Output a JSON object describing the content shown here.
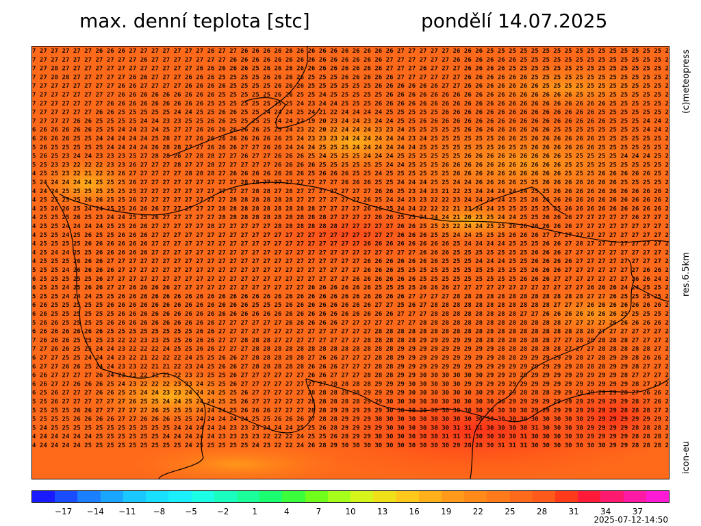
{
  "header": {
    "title": "max. denní teplota [stc]",
    "date": "pondělí 14.07.2025"
  },
  "side_labels": {
    "copyright": "(c)meteopress",
    "resolution": "res.6.5km",
    "model": "icon-eu"
  },
  "timestamp": "2025-07-12-14:50",
  "colorbar": {
    "ticks": [
      "−17",
      "−14",
      "−11",
      "−8",
      "−5",
      "−2",
      "1",
      "4",
      "7",
      "10",
      "13",
      "16",
      "19",
      "22",
      "25",
      "28",
      "31",
      "34",
      "37"
    ],
    "tick_values": [
      -17,
      -14,
      -11,
      -8,
      -5,
      -2,
      1,
      4,
      7,
      10,
      13,
      16,
      19,
      22,
      25,
      28,
      31,
      34,
      37
    ],
    "range": [
      -20,
      40
    ],
    "colors": [
      "#1a1aff",
      "#1a4cff",
      "#1a80ff",
      "#1aa6ff",
      "#1ac8ff",
      "#1ae0ff",
      "#1af0ff",
      "#1affe6",
      "#1affc0",
      "#1aff9a",
      "#1aff70",
      "#3aff3a",
      "#70ff1a",
      "#a6ff1a",
      "#d6f51a",
      "#f0e01a",
      "#ffc81a",
      "#ffb01a",
      "#ff9a1a",
      "#ff8a1a",
      "#ff7a1a",
      "#ff6a1a",
      "#ff5a1a",
      "#ff3a1a",
      "#ff1a3a",
      "#ff1a70",
      "#ff1aa6",
      "#ff1ad6"
    ]
  },
  "map": {
    "grid_text_rows": [
      "7 27 27 27 27 27 26 26 26 27 27 27 27 27 27 27 26 27 27 26 26 26 26 26 26 26 26 26 26 26 26 26 26 27 27 27 27 27 26 26 26 25 25 25 25 25 25 25 25 25 25 25 25 25 25 25 25 2",
      "7 27 27 27 27 27 27 27 27 27 26 27 27 27 27 27 27 27 26 26 26 26 26 26 26 26 26 26 26 26 26 26 27 27 27 27 27 27 26 26 26 26 26 26 25 25 25 25 25 25 25 25 25 25 25 25 25 2",
      "7 27 28 27 27 27 27 27 27 27 27 27 27 27 27 26 26 26 26 26 25 26 26 26 26 26 26 26 26 26 26 26 27 27 27 26 27 27 27 26 26 26 26 25 25 25 25 25 25 25 25 25 25 25 25 25 25 2",
      "7 27 28 28 27 27 27 27 27 26 26 27 27 27 26 26 26 25 25 25 25 26 26 26 26 25 25 25 26 26 26 26 26 27 27 27 27 27 27 26 26 26 26 26 26 25 25 25 25 25 25 25 25 25 25 25 25 2",
      "7 27 27 27 27 27 27 27 26 26 27 27 27 27 26 26 26 26 25 25 25 25 26 26 26 25 25 25 25 25 25 26 26 26 26 26 26 27 27 26 26 26 26 26 26 26 25 25 25 25 25 25 25 25 25 25 25 2",
      "7 27 27 27 27 27 27 27 26 26 26 26 26 26 26 26 26 25 25 25 25 25 26 26 25 25 24 25 25 25 25 25 26 26 26 26 26 26 26 26 26 26 26 26 26 26 26 26 26 25 25 25 25 25 25 25 25 2",
      "7 27 27 27 27 27 27 26 26 26 26 26 26 26 26 26 25 25 25 25 25 25 25 25 24 23 24 24 25 25 25 26 26 26 26 26 26 26 26 26 26 26 26 26 26 26 26 26 26 26 26 26 25 25 25 25 25 2",
      "7 27 27 27 27 27 26 26 25 25 25 25 25 24 24 25 25 26 26 25 25 24 24 24 25 24 21 22 24 24 24 24 25 25 25 25 25 26 26 26 26 26 26 26 26 26 26 26 26 26 26 25 25 25 25 25 25 2",
      "7 27 27 27 26 26 25 25 25 25 24 24 23 23 25 25 26 26 25 25 25 25 24 24 22 19 20 23 24 24 23 24 24 25 25 26 26 26 26 26 26 26 26 26 26 26 26 26 26 26 26 26 25 25 25 24 24 2",
      "6 26 26 26 26 26 25 25 24 24 23 24 25 27 27 26 26 26 26 26 26 25 25 24 23 22 20 22 24 24 24 23 23 24 25 25 25 25 25 26 26 26 26 26 26 26 26 25 25 25 25 25 25 25 25 24 24 2",
      "6 26 26 26 25 25 24 24 24 24 24 25 28 27 27 26 26 26 26 26 26 26 26 25 24 23 23 23 24 24 24 24 24 24 23 24 25 25 25 25 25 25 26 26 25 26 26 26 26 26 26 25 25 25 25 25 25 2",
      "5 26 25 25 25 25 25 24 24 24 24 26 28 28 27 27 26 26 26 27 27 26 26 24 24 24 25 25 25 24 24 24 24 24 24 25 25 25 25 25 25 25 26 25 25 26 26 26 26 26 26 25 25 25 25 25 25 2",
      "5 26 25 23 24 24 23 23 23 25 27 28 28 26 27 28 28 27 27 26 27 27 26 26 26 25 24 25 25 25 24 24 24 25 25 25 25 25 25 26 26 26 26 26 26 26 26 26 25 25 25 25 25 24 24 24 25 2",
      "5 25 23 23 22 22 22 23 23 26 27 27 27 28 27 27 28 27 27 27 27 27 26 26 26 26 25 25 25 25 25 25 24 24 25 25 25 26 26 26 26 26 26 26 26 26 26 26 25 25 25 25 25 25 25 25 25 2",
      "4 25 25 23 22 21 22 23 26 27 27 27 27 27 28 28 28 27 26 26 26 26 26 26 26 25 26 26 26 25 25 24 25 25 25 25 25 25 26 26 26 26 26 26 26 26 26 26 25 25 25 26 26 26 26 26 25 2",
      "5 24 24 24 24 24 25 25 25 26 27 27 27 27 27 27 27 27 27 28 28 27 27 27 27 27 27 27 26 26 26 25 25 24 24 24 25 25 24 24 26 26 26 26 25 25 26 26 26 26 26 26 26 25 25 25 25 2",
      "4 24 24 25 25 25 25 25 25 25 27 27 27 27 27 27 27 27 27 27 28 28 27 28 27 27 27 27 27 27 27 26 26 25 23 24 23 21 22 23 24 24 24 24 24 25 25 26 26 26 26 26 26 26 26 26 26 2",
      "4 25 25 25 25 26 26 25 25 26 27 27 27 27 27 27 27 27 28 28 28 28 28 28 27 27 27 27 27 27 26 25 24 24 23 23 22 22 23 24 24 23 24 25 25 26 26 26 26 26 26 26 26 26 26 26 26 2",
      "4 25 26 26 25 24 24 25 25 26 26 26 27 27 27 27 27 28 28 28 28 28 28 28 28 28 27 27 27 27 26 26 25 24 24 22 22 22 21 23 24 24 25 25 25 25 25 25 26 26 26 26 26 26 26 26 26 2",
      "4 25 25 25 26 25 23 24 24 25 25 26 27 27 27 27 27 28 28 28 28 28 28 28 28 28 28 27 27 27 27 26 26 25 25 24 24 24 21 20 23 25 24 24 25 25 26 26 26 27 27 27 27 27 26 27 27 2",
      "4 25 25 24 24 24 24 25 25 26 26 27 27 27 27 27 28 27 27 27 27 27 28 28 28 28 28 28 27 27 27 27 27 26 26 25 25 23 22 24 24 25 25 26 26 26 26 26 26 27 27 27 27 27 27 27 27 2",
      "4 25 25 24 25 26 25 25 26 26 26 27 27 27 27 27 27 27 27 27 27 27 27 27 27 27 27 27 27 27 27 27 27 26 26 26 25 25 24 24 25 25 25 26 26 26 27 27 27 27 27 27 27 27 27 27 27 2",
      "4 25 25 25 25 26 26 26 26 26 26 27 27 27 27 27 27 27 27 27 27 27 27 27 27 27 27 27 27 27 26 26 26 26 26 26 26 26 25 24 24 24 24 25 25 25 26 26 27 28 27 27 27 27 27 27 27 2",
      "4 25 24 24 25 25 26 26 26 26 26 27 27 27 27 27 27 27 27 27 27 27 27 27 27 27 27 27 27 27 27 27 27 27 27 26 26 26 25 25 25 25 25 25 25 26 26 26 27 27 27 27 27 27 27 27 27 2",
      "4 25 25 25 26 26 26 27 27 27 27 27 27 27 27 27 27 27 27 27 27 27 27 27 27 27 27 27 27 27 26 26 26 26 26 26 26 25 25 25 24 24 24 25 25 26 26 26 26 27 27 27 27 27 27 27 27 2",
      "5 25 25 24 26 26 26 26 27 27 27 27 27 27 27 27 27 27 27 27 27 27 27 27 27 27 27 27 27 27 26 26 26 25 25 25 25 25 25 25 25 25 25 25 25 26 26 26 27 27 27 27 27 27 27 26 26 2",
      "6 25 25 25 25 25 26 27 27 27 27 27 27 27 27 27 27 27 27 27 27 27 27 27 27 27 27 27 27 26 26 26 26 26 26 25 25 25 25 25 25 25 25 25 26 26 26 27 27 27 27 27 27 27 26 26 24 2",
      "6 25 25 24 25 26 26 27 27 26 26 26 26 27 27 27 27 27 27 27 27 27 27 27 27 26 26 26 26 26 26 25 25 25 25 26 26 26 27 27 27 27 27 27 27 27 27 27 27 27 26 26 26 24 24 25 25 2",
      "5 25 25 24 24 24 25 25 26 26 26 26 26 26 26 26 26 26 26 26 26 26 26 26 26 26 26 26 26 26 26 26 26 26 27 27 27 27 28 28 28 28 28 28 28 28 28 28 28 28 27 27 26 25 25 25 25 2",
      "6 26 25 25 25 25 25 26 26 26 26 26 26 26 26 26 26 26 26 26 25 25 25 26 26 26 26 26 26 26 26 27 27 25 26 27 28 28 28 28 28 28 28 28 28 28 28 27 27 27 26 26 26 26 26 26 26 2",
      "6 26 25 25 25 25 25 25 26 26 26 26 26 26 26 26 26 26 26 26 26 26 26 26 26 26 26 26 26 26 26 26 26 27 27 27 28 28 28 28 28 28 28 28 27 27 26 26 26 26 26 26 26 25 25 25 25 2",
      "5 26 26 25 25 25 25 26 26 26 26 26 26 26 26 26 26 27 27 27 27 27 27 26 26 26 26 26 27 27 27 27 27 27 27 28 28 28 28 28 28 28 28 28 28 28 28 28 27 27 27 27 26 26 26 26 26 2",
      "6 26 26 26 26 26 26 25 25 25 25 25 25 25 25 26 26 27 27 27 27 27 27 27 27 27 27 27 27 27 27 28 28 28 28 28 28 28 28 28 28 28 28 28 28 28 28 28 28 28 28 27 27 27 27 27 27 2",
      "7 26 26 26 25 25 25 23 22 22 23 23 25 25 26 26 26 27 27 28 28 28 27 27 27 27 27 27 27 27 28 28 28 28 28 29 29 29 29 29 28 28 28 28 28 28 28 27 27 28 28 28 28 28 27 27 27 2",
      "7 27 26 26 25 25 24 24 23 22 22 22 24 25 25 26 26 27 27 27 28 28 28 28 28 28 28 28 28 28 28 28 28 29 29 29 29 29 29 29 29 29 28 28 28 28 28 28 27 27 27 28 28 28 28 28 27 2",
      "6 27 27 25 25 24 24 24 23 22 21 22 22 22 24 25 25 26 26 27 28 28 28 28 28 27 26 26 27 27 27 28 28 29 29 29 29 29 29 29 29 29 28 28 29 29 29 29 29 28 27 28 29 29 28 26 26 2",
      "6 27 27 26 26 25 24 24 23 23 22 21 21 22 23 24 25 26 26 27 28 28 28 28 28 26 26 26 27 27 27 28 28 29 29 29 29 29 29 29 29 29 29 29 29 29 29 29 29 28 28 28 29 29 28 27 27 2",
      "6 26 27 27 27 27 26 24 23 23 22 21 21 22 23 23 25 25 26 27 27 27 27 27 27 26 26 27 27 27 28 28 28 29 29 30 30 30 30 30 30 29 29 29 29 29 29 29 29 29 29 29 29 28 27 27 27 2",
      "6 26 27 27 26 26 26 25 24 23 22 22 22 23 23 24 25 25 26 27 27 27 27 27 27 27 27 28 28 28 28 29 29 29 30 30 30 30 30 29 29 29 29 29 29 29 29 29 29 29 29 29 29 29 28 27 27 2",
      "6 25 26 27 27 27 26 26 25 25 24 24 23 23 24 24 24 25 25 26 27 27 27 27 27 28 28 28 28 28 29 29 29 29 30 30 30 30 30 30 30 29 29 29 28 28 28 29 29 29 29 29 29 28 27 26 26 2",
      "5 25 26 27 27 27 27 27 27 26 25 25 24 24 25 24 24 25 25 26 27 27 27 27 27 28 28 28 28 28 29 29 30 30 30 30 30 30 30 30 30 30 30 29 29 29 29 29 29 29 29 29 29 29 28 27 26 2",
      "5 25 25 25 26 26 27 27 27 27 27 26 25 25 25 24 24 24 25 26 26 26 27 27 27 28 28 29 29 29 29 29 30 30 30 30 30 30 30 30 30 30 30 30 30 29 29 29 29 29 29 29 29 28 28 28 27 2",
      "5 25 25 25 26 26 26 26 27 27 26 26 26 25 25 24 24 24 24 24 25 25 26 26 26 27 28 28 29 29 29 30 30 30 30 30 30 30 30 30 30 30 30 30 30 30 30 30 30 30 29 29 29 29 29 29 29 2",
      "5 24 25 25 25 25 25 25 25 25 25 25 25 24 24 24 24 24 23 23 23 24 24 24 25 25 26 28 29 29 29 29 30 30 30 30 30 30 31 31 31 30 30 30 30 31 30 30 30 30 29 29 29 29 28 28 28 2",
      "4 24 24 24 24 24 25 25 25 25 25 25 24 24 24 24 24 23 23 23 23 22 22 22 24 25 25 26 28 29 29 30 30 30 30 30 30 31 31 31 30 30 30 30 31 30 30 30 30 30 29 29 29 29 28 28 28 2",
      "4 24 24 24 24 25 25 25 25 25 25 25 25 25 24 25 25 25 25 25 24 23 22 22 24 26 28 29 30 30 30 30 30 30 30 30 30 30 29 28 28 30 31 31 31 30 30 30 30 30 30 30 29 29 28 28 28 2"
    ]
  }
}
